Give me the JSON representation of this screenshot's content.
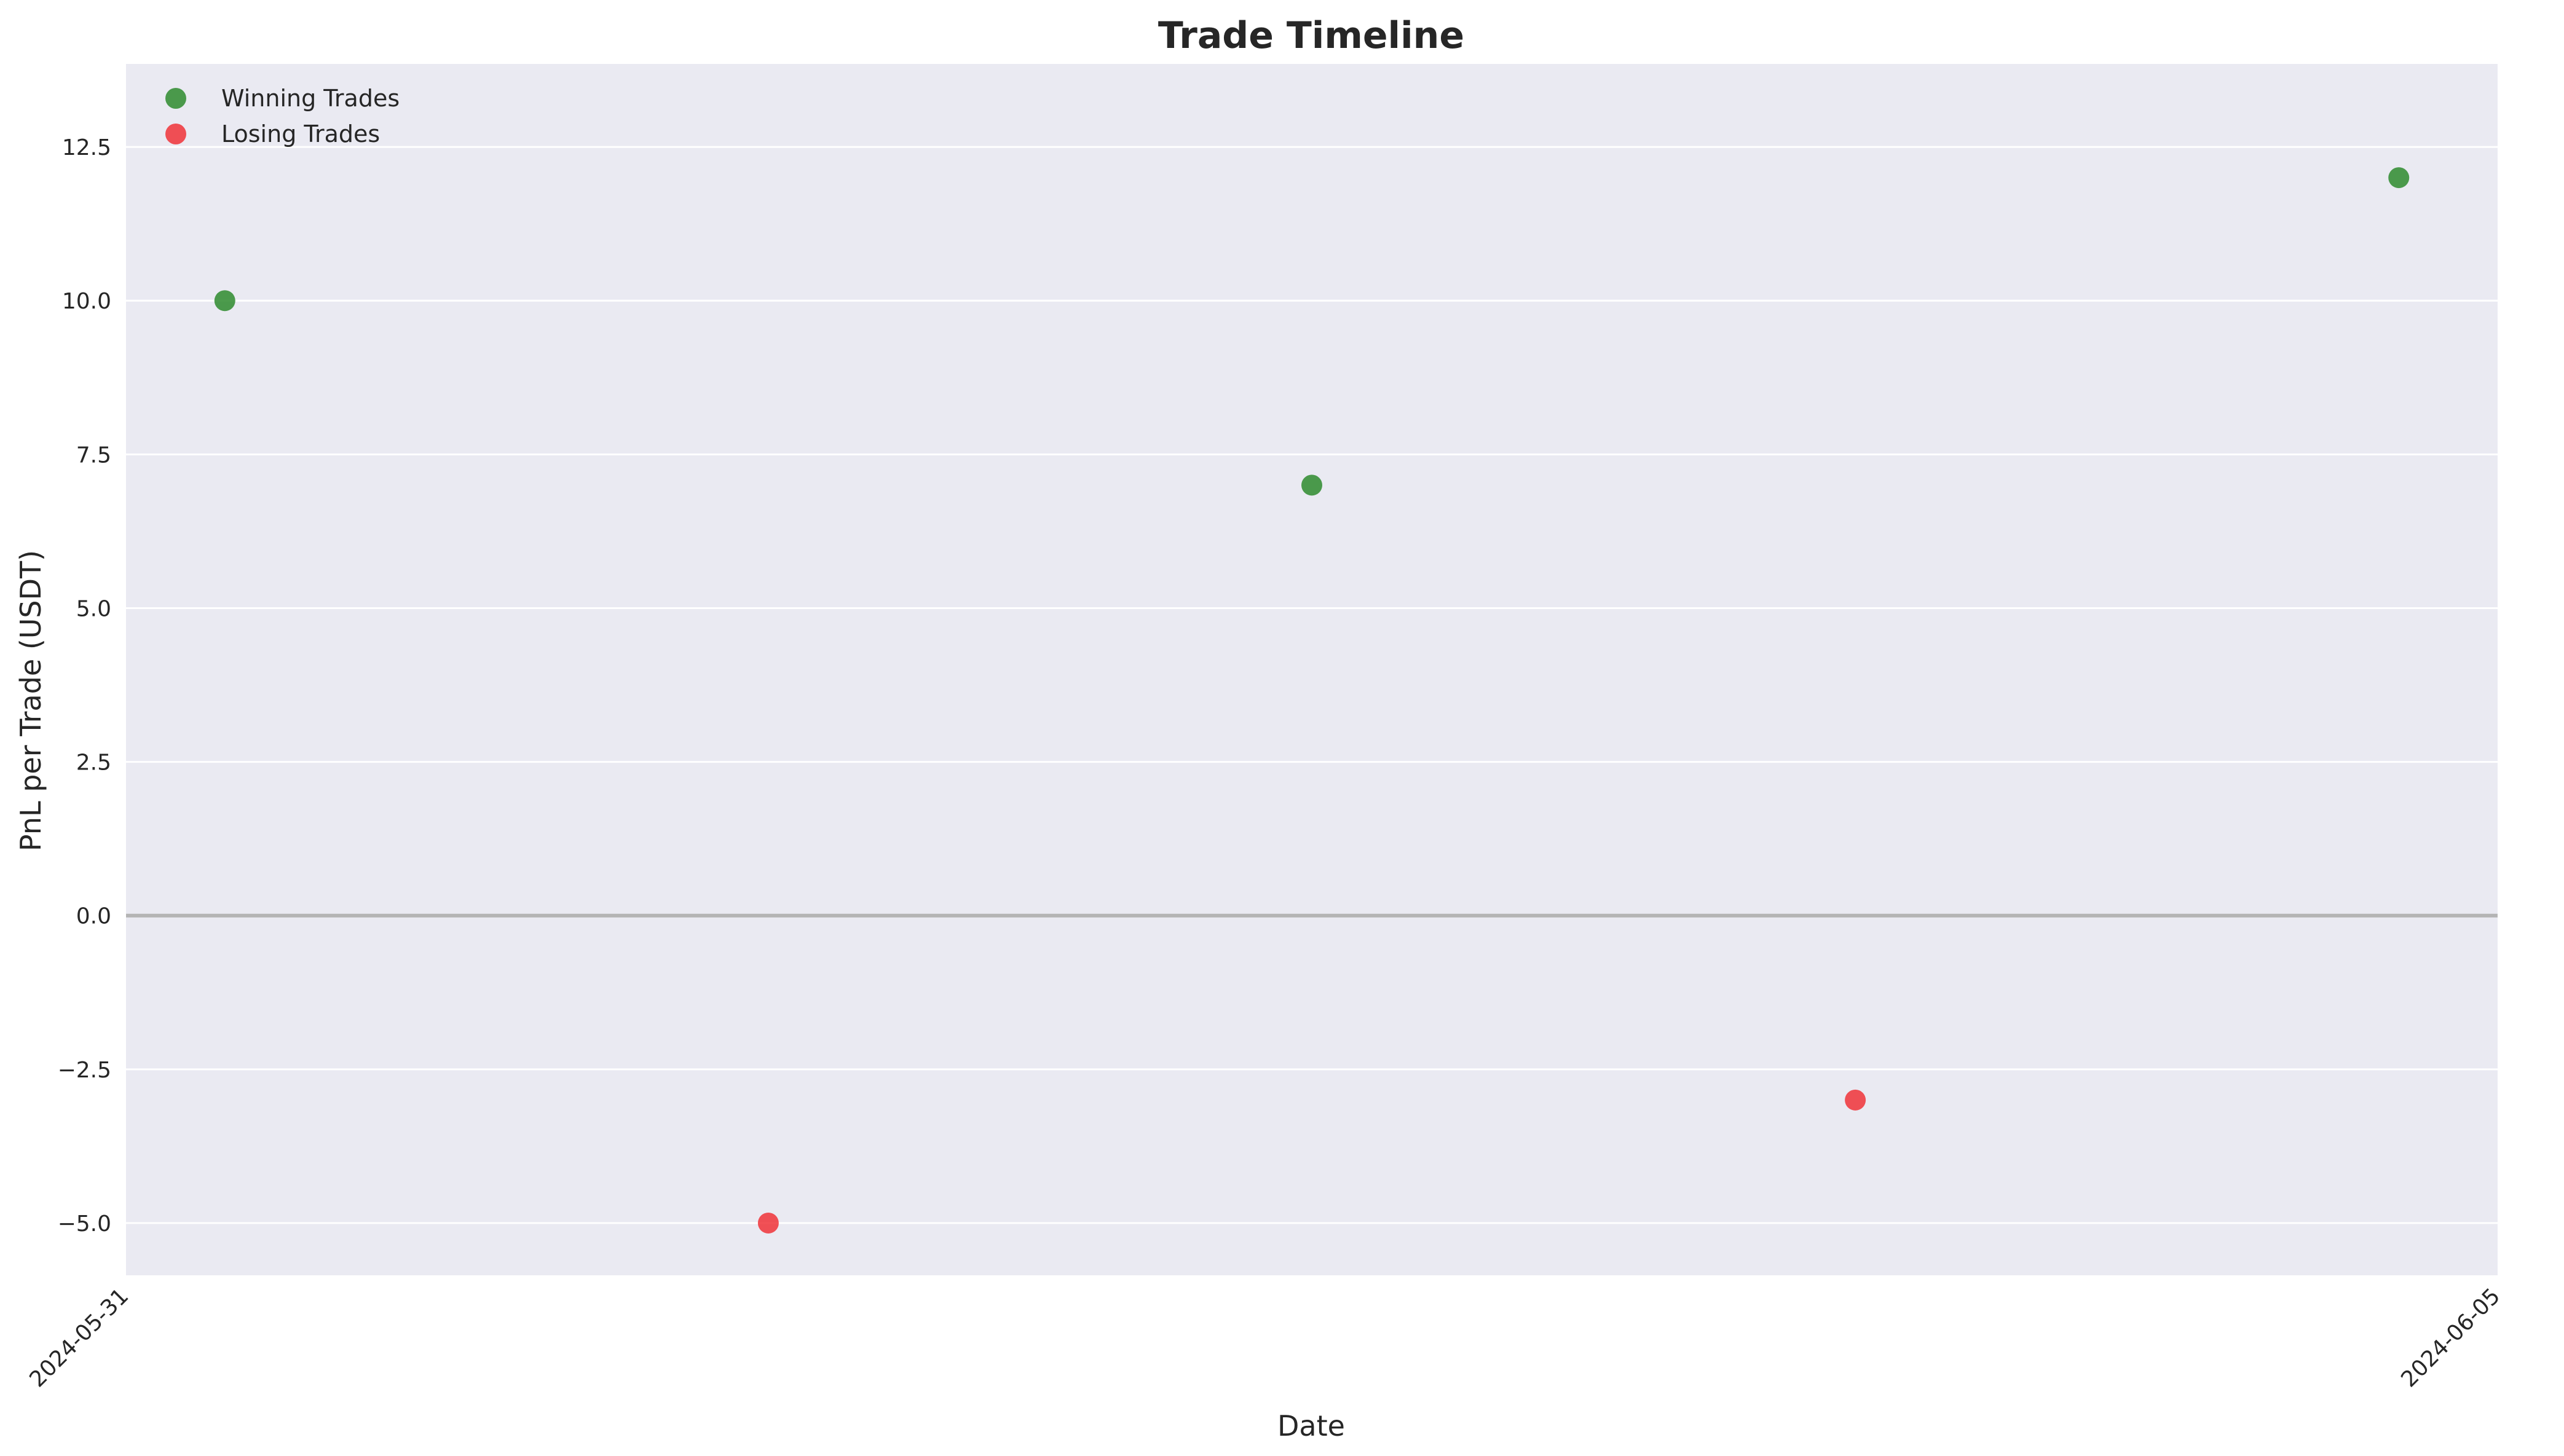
{
  "chart_data": {
    "type": "scatter",
    "title": "Trade Timeline",
    "xlabel": "Date",
    "ylabel": "PnL per Trade (USDT)",
    "x_range": [
      "2024-05-31",
      "2024-06-05"
    ],
    "x_ticks": [
      "2024-05-31",
      "2024-06-05"
    ],
    "ylim": [
      -5.85,
      13.85
    ],
    "y_ticks": [
      -5.0,
      -2.5,
      0.0,
      2.5,
      5.0,
      7.5,
      10.0,
      12.5
    ],
    "y_tick_labels": [
      "−5.0",
      "−2.5",
      "0.0",
      "2.5",
      "5.0",
      "7.5",
      "10.0",
      "12.5"
    ],
    "grid": true,
    "zero_line": true,
    "legend_position": "top-left",
    "series": [
      {
        "name": "Winning Trades",
        "color": "#2e8b2e",
        "points": [
          {
            "x": "2024-05-31T05:00",
            "y": 10
          },
          {
            "x": "2024-06-02T12:00",
            "y": 7
          },
          {
            "x": "2024-06-04T19:00",
            "y": 12
          }
        ]
      },
      {
        "name": "Losing Trades",
        "color": "#f03238",
        "points": [
          {
            "x": "2024-06-01T08:30",
            "y": -5
          },
          {
            "x": "2024-06-03T15:30",
            "y": -3
          }
        ]
      }
    ]
  }
}
